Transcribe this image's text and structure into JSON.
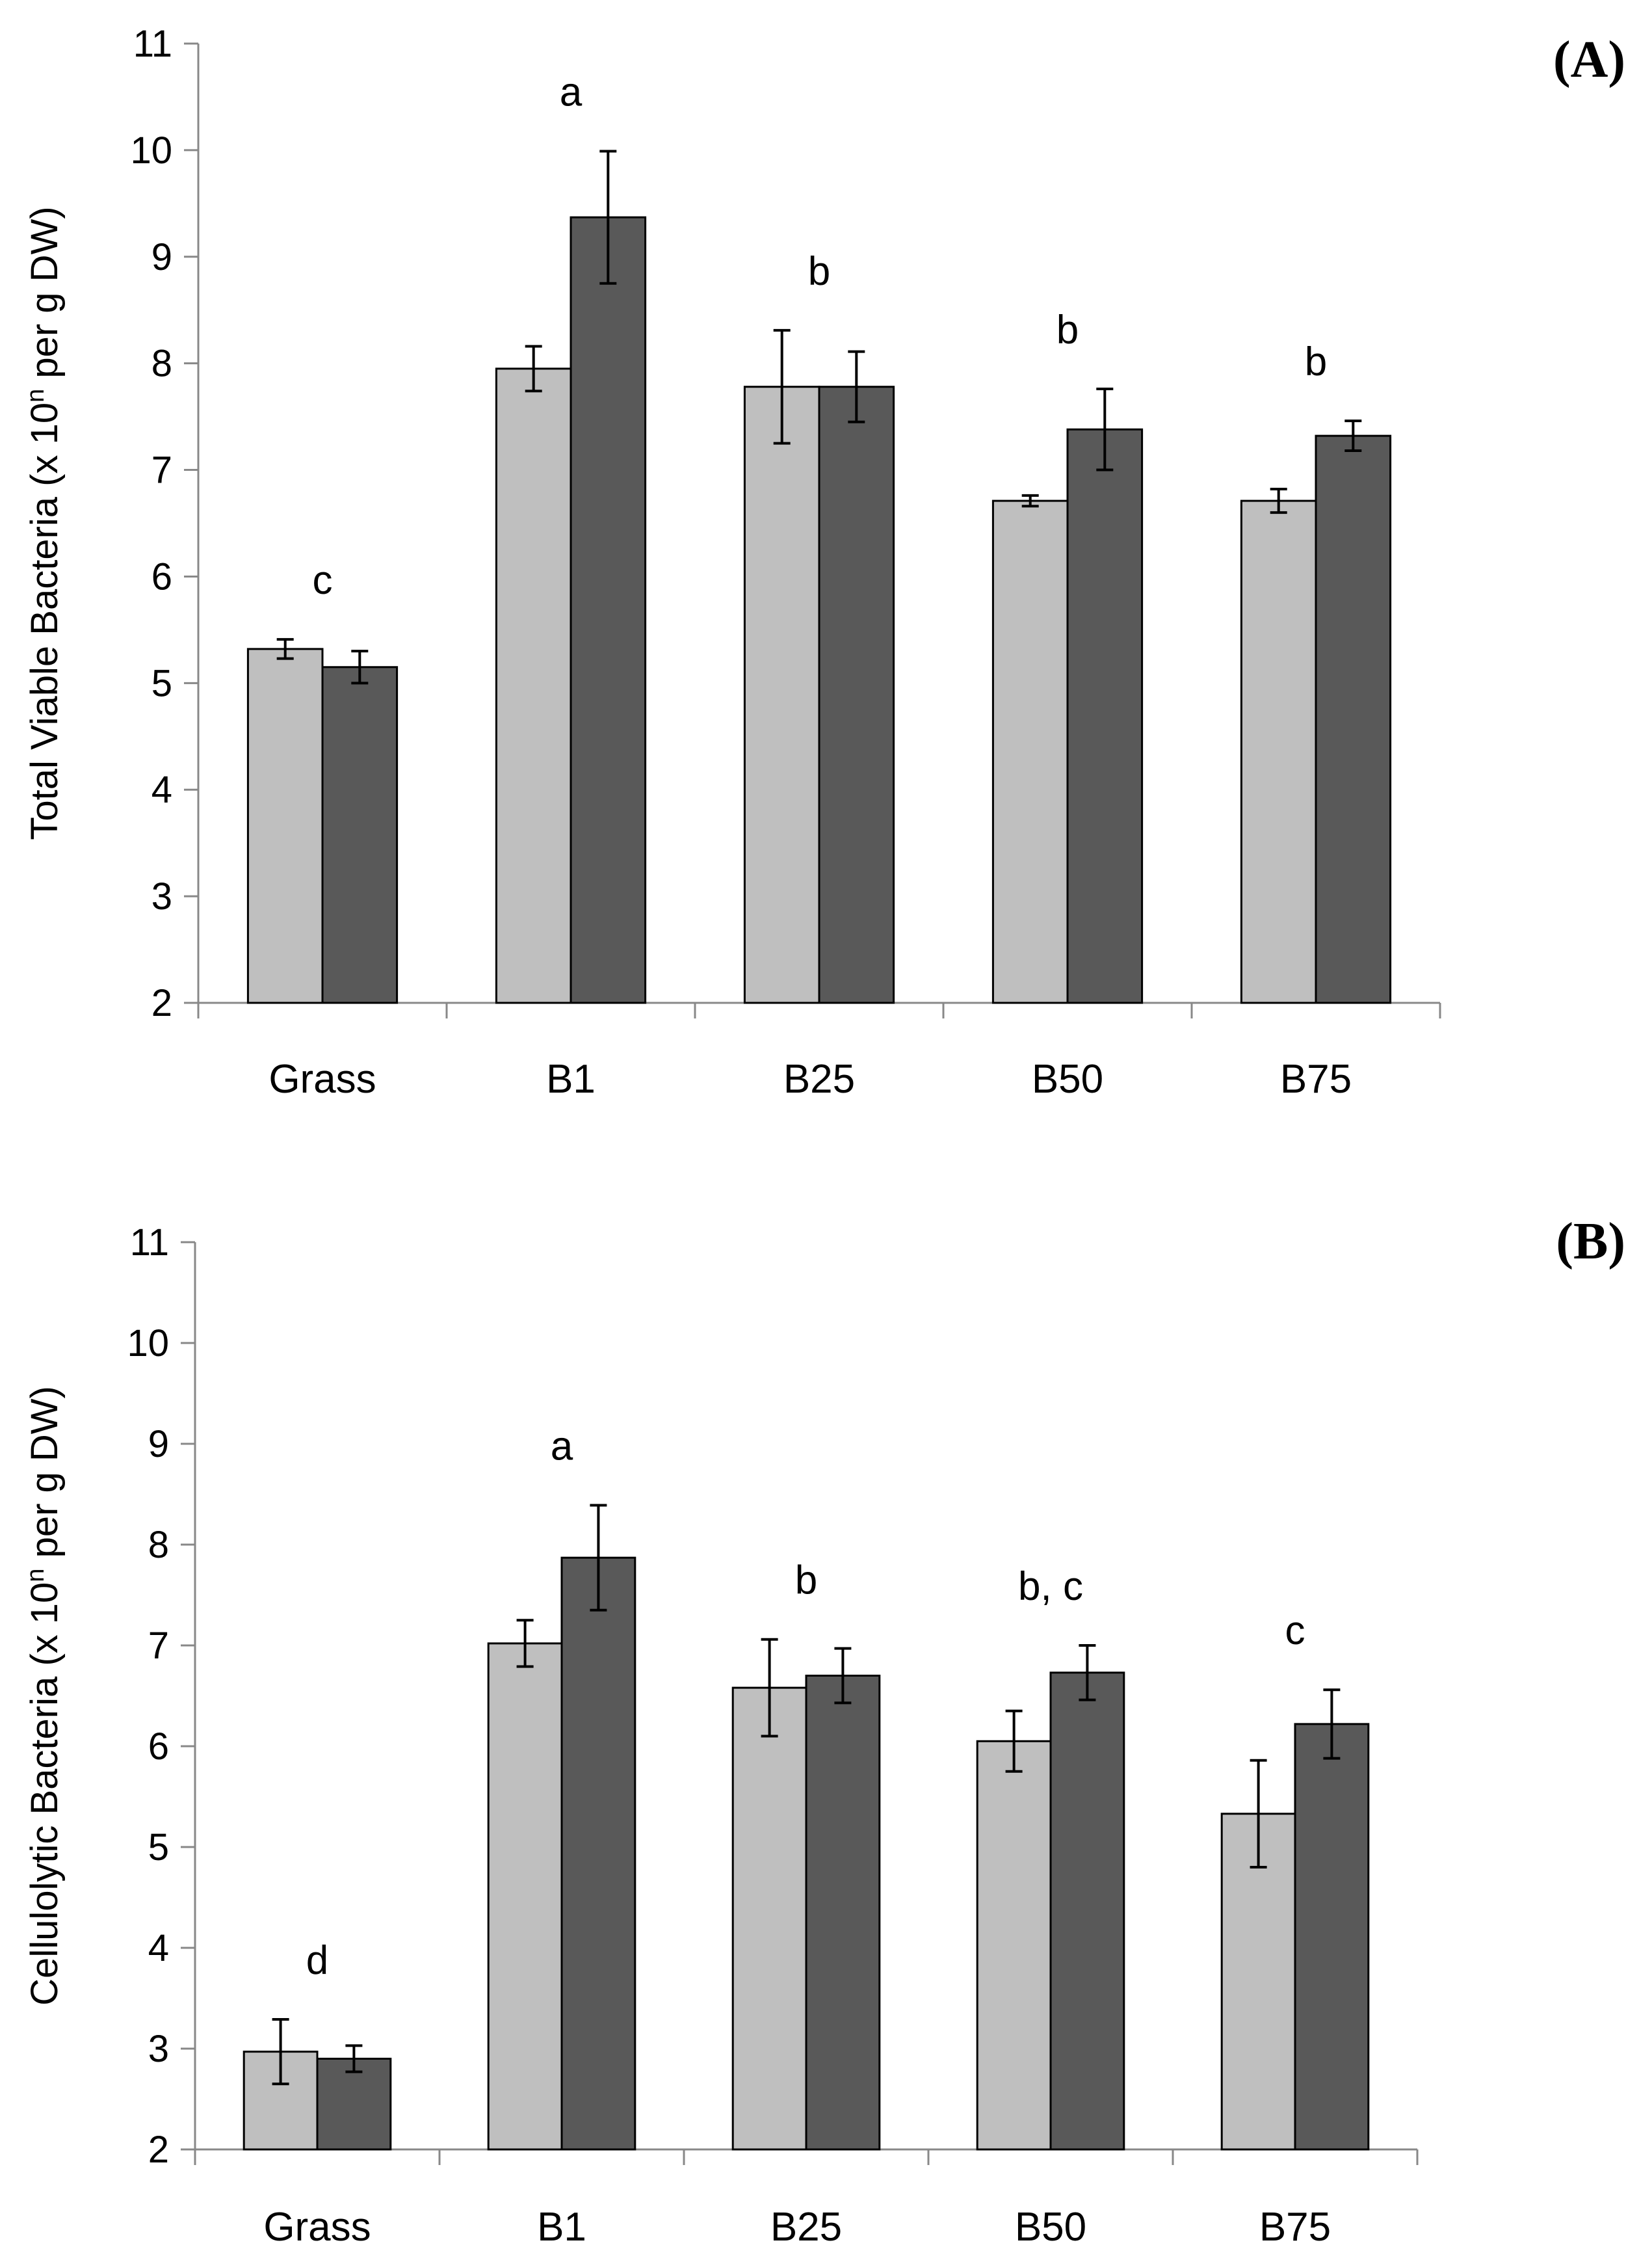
{
  "chart_data": [
    {
      "type": "bar",
      "panel_label": "(A)",
      "ylabel": "Total Viable Bacteria (x 10",
      "ylabel_sup": "n",
      "ylabel_tail": " per g DW)",
      "ylim": [
        2,
        11
      ],
      "yticks": [
        "2",
        "3",
        "4",
        "5",
        "6",
        "7",
        "8",
        "9",
        "10",
        "11"
      ],
      "categories": [
        "Grass",
        "B1",
        "B25",
        "B50",
        "B75"
      ],
      "series": [
        {
          "name": "light",
          "color": "#bfbfbf",
          "values": [
            5.32,
            7.95,
            7.78,
            6.71,
            6.71
          ],
          "errors": [
            0.09,
            0.21,
            0.53,
            0.05,
            0.11
          ]
        },
        {
          "name": "dark",
          "color": "#595959",
          "values": [
            5.15,
            9.37,
            7.78,
            7.38,
            7.32
          ],
          "errors": [
            0.15,
            0.62,
            0.33,
            0.38,
            0.14
          ]
        }
      ],
      "significance": [
        "c",
        "a",
        "b",
        "b",
        "b"
      ]
    },
    {
      "type": "bar",
      "panel_label": "(B)",
      "ylabel": "Cellulolytic Bacteria (x 10",
      "ylabel_sup": "n",
      "ylabel_tail": " per g DW)",
      "ylim": [
        2,
        11
      ],
      "yticks": [
        "2",
        "3",
        "4",
        "5",
        "6",
        "7",
        "8",
        "9",
        "10",
        "11"
      ],
      "categories": [
        "Grass",
        "B1",
        "B25",
        "B50",
        "B75"
      ],
      "series": [
        {
          "name": "light",
          "color": "#bfbfbf",
          "values": [
            2.97,
            7.02,
            6.58,
            6.05,
            5.33
          ],
          "errors": [
            0.32,
            0.23,
            0.48,
            0.3,
            0.53
          ]
        },
        {
          "name": "dark",
          "color": "#595959",
          "values": [
            2.9,
            7.87,
            6.7,
            6.73,
            6.22
          ],
          "errors": [
            0.13,
            0.52,
            0.27,
            0.27,
            0.34
          ]
        }
      ],
      "significance": [
        "d",
        "a",
        "b",
        "b, c",
        "c"
      ]
    }
  ]
}
